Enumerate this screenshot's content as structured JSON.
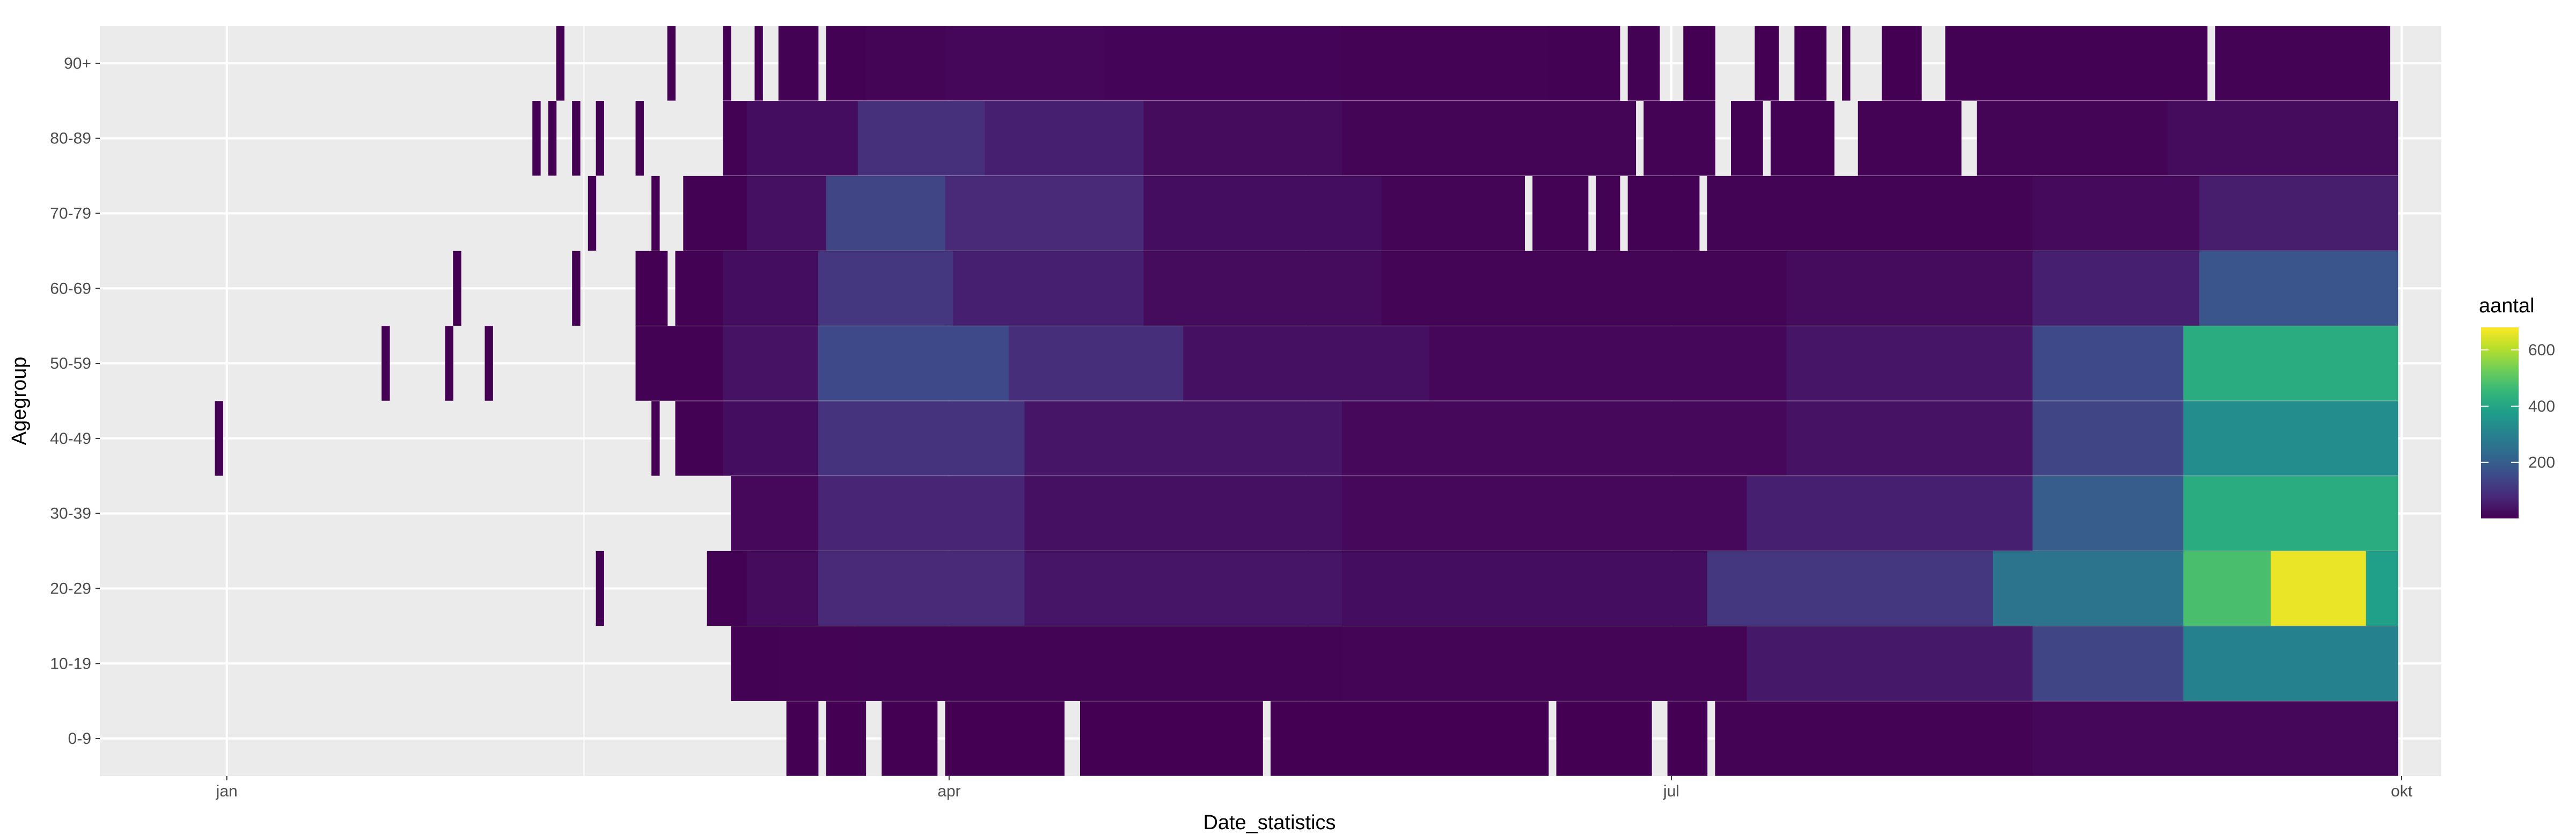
{
  "chart_data": {
    "type": "heatmap",
    "title": "",
    "xlabel": "Date_statistics",
    "ylabel": "Agegroup",
    "x_range": [
      "2019-12-16",
      "2020-10-06"
    ],
    "x_ticks": [
      {
        "date": "2020-01-01",
        "label": "jan"
      },
      {
        "date": "2020-04-01",
        "label": "apr"
      },
      {
        "date": "2020-07-01",
        "label": "jul"
      },
      {
        "date": "2020-10-01",
        "label": "okt"
      }
    ],
    "x_minor_ticks": [
      "2020-02-15",
      "2020-05-16",
      "2020-08-16"
    ],
    "y_categories": [
      "0-9",
      "10-19",
      "20-29",
      "30-39",
      "40-49",
      "50-59",
      "60-69",
      "70-79",
      "80-89",
      "90+"
    ],
    "grid": true,
    "legend": {
      "title": "aantal",
      "position": "right",
      "range": [
        1,
        680
      ],
      "ticks": [
        200,
        400,
        600
      ]
    },
    "colormap": "viridis",
    "colormap_stops": [
      "#440154",
      "#482878",
      "#3e4a89",
      "#31688e",
      "#26828e",
      "#1f9e89",
      "#35b779",
      "#6ece58",
      "#b5de2b",
      "#fde725"
    ],
    "panel_background": "#ebebeb",
    "grid_color": "#ffffff",
    "notes_series": "Values give daily case counts (aantal) per age group; each entry is [start_date, end_date, count] for a run of days.",
    "series": [
      {
        "agegroup": "90+",
        "runs": [
          [
            "2020-02-12",
            "2020-02-12",
            1
          ],
          [
            "2020-02-26",
            "2020-02-26",
            1
          ],
          [
            "2020-03-04",
            "2020-03-04",
            1
          ],
          [
            "2020-03-08",
            "2020-03-08",
            1
          ],
          [
            "2020-03-11",
            "2020-03-15",
            2
          ],
          [
            "2020-03-17",
            "2020-03-21",
            3
          ],
          [
            "2020-03-22",
            "2020-03-31",
            8
          ],
          [
            "2020-04-01",
            "2020-04-20",
            12
          ],
          [
            "2020-04-21",
            "2020-05-20",
            9
          ],
          [
            "2020-05-21",
            "2020-06-15",
            4
          ],
          [
            "2020-06-16",
            "2020-06-24",
            2
          ],
          [
            "2020-06-26",
            "2020-06-29",
            2
          ],
          [
            "2020-07-03",
            "2020-07-06",
            1
          ],
          [
            "2020-07-12",
            "2020-07-14",
            1
          ],
          [
            "2020-07-17",
            "2020-07-20",
            1
          ],
          [
            "2020-07-23",
            "2020-07-23",
            1
          ],
          [
            "2020-07-28",
            "2020-08-01",
            1
          ],
          [
            "2020-08-05",
            "2020-09-06",
            2
          ],
          [
            "2020-09-08",
            "2020-09-29",
            4
          ]
        ]
      },
      {
        "agegroup": "80-89",
        "runs": [
          [
            "2020-02-09",
            "2020-02-09",
            1
          ],
          [
            "2020-02-11",
            "2020-02-11",
            1
          ],
          [
            "2020-02-14",
            "2020-02-14",
            1
          ],
          [
            "2020-02-17",
            "2020-02-17",
            1
          ],
          [
            "2020-02-22",
            "2020-02-22",
            1
          ],
          [
            "2020-03-04",
            "2020-03-06",
            2
          ],
          [
            "2020-03-07",
            "2020-03-20",
            25
          ],
          [
            "2020-03-21",
            "2020-04-05",
            95
          ],
          [
            "2020-04-06",
            "2020-04-25",
            60
          ],
          [
            "2020-04-26",
            "2020-05-20",
            22
          ],
          [
            "2020-05-21",
            "2020-06-26",
            8
          ],
          [
            "2020-06-28",
            "2020-07-06",
            4
          ],
          [
            "2020-07-09",
            "2020-07-12",
            3
          ],
          [
            "2020-07-14",
            "2020-07-21",
            3
          ],
          [
            "2020-07-25",
            "2020-08-06",
            4
          ],
          [
            "2020-08-09",
            "2020-09-01",
            8
          ],
          [
            "2020-09-02",
            "2020-09-30",
            20
          ]
        ]
      },
      {
        "agegroup": "70-79",
        "runs": [
          [
            "2020-02-16",
            "2020-02-16",
            1
          ],
          [
            "2020-02-24",
            "2020-02-24",
            1
          ],
          [
            "2020-02-28",
            "2020-03-06",
            2
          ],
          [
            "2020-03-07",
            "2020-03-16",
            30
          ],
          [
            "2020-03-17",
            "2020-03-31",
            140
          ],
          [
            "2020-04-01",
            "2020-04-25",
            80
          ],
          [
            "2020-04-26",
            "2020-05-25",
            25
          ],
          [
            "2020-05-26",
            "2020-06-12",
            8
          ],
          [
            "2020-06-14",
            "2020-06-20",
            4
          ],
          [
            "2020-06-22",
            "2020-06-24",
            3
          ],
          [
            "2020-06-26",
            "2020-07-04",
            3
          ],
          [
            "2020-07-06",
            "2020-08-15",
            6
          ],
          [
            "2020-08-16",
            "2020-09-05",
            18
          ],
          [
            "2020-09-06",
            "2020-09-30",
            55
          ]
        ]
      },
      {
        "agegroup": "60-69",
        "runs": [
          [
            "2020-01-30",
            "2020-01-30",
            1
          ],
          [
            "2020-02-14",
            "2020-02-14",
            1
          ],
          [
            "2020-02-22",
            "2020-02-25",
            1
          ],
          [
            "2020-02-27",
            "2020-03-03",
            2
          ],
          [
            "2020-03-04",
            "2020-03-15",
            25
          ],
          [
            "2020-03-16",
            "2020-04-01",
            110
          ],
          [
            "2020-04-02",
            "2020-04-25",
            60
          ],
          [
            "2020-04-26",
            "2020-05-25",
            20
          ],
          [
            "2020-05-26",
            "2020-07-15",
            8
          ],
          [
            "2020-07-16",
            "2020-08-15",
            20
          ],
          [
            "2020-08-16",
            "2020-09-05",
            60
          ],
          [
            "2020-09-06",
            "2020-09-30",
            180
          ]
        ]
      },
      {
        "agegroup": "50-59",
        "runs": [
          [
            "2020-01-21",
            "2020-01-21",
            1
          ],
          [
            "2020-01-29",
            "2020-01-29",
            1
          ],
          [
            "2020-02-03",
            "2020-02-03",
            1
          ],
          [
            "2020-02-22",
            "2020-03-03",
            3
          ],
          [
            "2020-03-04",
            "2020-03-15",
            35
          ],
          [
            "2020-03-16",
            "2020-04-08",
            150
          ],
          [
            "2020-04-09",
            "2020-04-30",
            90
          ],
          [
            "2020-04-31",
            "2020-05-31",
            30
          ],
          [
            "2020-06-01",
            "2020-07-15",
            12
          ],
          [
            "2020-07-16",
            "2020-08-15",
            40
          ],
          [
            "2020-08-16",
            "2020-09-03",
            150
          ],
          [
            "2020-09-04",
            "2020-09-30",
            420
          ]
        ]
      },
      {
        "agegroup": "40-49",
        "runs": [
          [
            "2019-12-31",
            "2019-12-31",
            1
          ],
          [
            "2020-02-24",
            "2020-02-24",
            1
          ],
          [
            "2020-02-27",
            "2020-03-03",
            2
          ],
          [
            "2020-03-04",
            "2020-03-15",
            25
          ],
          [
            "2020-03-16",
            "2020-04-10",
            100
          ],
          [
            "2020-04-11",
            "2020-05-20",
            40
          ],
          [
            "2020-05-21",
            "2020-07-15",
            15
          ],
          [
            "2020-07-16",
            "2020-08-15",
            35
          ],
          [
            "2020-08-16",
            "2020-09-03",
            140
          ],
          [
            "2020-09-04",
            "2020-09-30",
            330
          ]
        ]
      },
      {
        "agegroup": "30-39",
        "runs": [
          [
            "2020-03-05",
            "2020-03-15",
            15
          ],
          [
            "2020-03-16",
            "2020-04-10",
            70
          ],
          [
            "2020-04-11",
            "2020-05-20",
            30
          ],
          [
            "2020-05-21",
            "2020-07-10",
            15
          ],
          [
            "2020-07-11",
            "2020-08-15",
            60
          ],
          [
            "2020-08-16",
            "2020-09-03",
            200
          ],
          [
            "2020-09-04",
            "2020-09-30",
            420
          ]
        ]
      },
      {
        "agegroup": "20-29",
        "runs": [
          [
            "2020-02-17",
            "2020-02-17",
            1
          ],
          [
            "2020-03-02",
            "2020-03-06",
            3
          ],
          [
            "2020-03-07",
            "2020-03-15",
            20
          ],
          [
            "2020-03-16",
            "2020-04-10",
            80
          ],
          [
            "2020-04-11",
            "2020-05-20",
            40
          ],
          [
            "2020-05-21",
            "2020-07-05",
            25
          ],
          [
            "2020-07-06",
            "2020-08-10",
            110
          ],
          [
            "2020-08-11",
            "2020-09-03",
            260
          ],
          [
            "2020-09-04",
            "2020-09-14",
            480
          ],
          [
            "2020-09-15",
            "2020-09-26",
            660
          ],
          [
            "2020-09-27",
            "2020-09-30",
            380
          ]
        ]
      },
      {
        "agegroup": "10-19",
        "runs": [
          [
            "2020-03-05",
            "2020-03-10",
            2
          ],
          [
            "2020-03-11",
            "2020-03-20",
            4
          ],
          [
            "2020-03-21",
            "2020-05-20",
            6
          ],
          [
            "2020-05-21",
            "2020-07-10",
            8
          ],
          [
            "2020-07-11",
            "2020-08-15",
            45
          ],
          [
            "2020-08-16",
            "2020-09-03",
            140
          ],
          [
            "2020-09-04",
            "2020-09-30",
            300
          ]
        ]
      },
      {
        "agegroup": "0-9",
        "runs": [
          [
            "2020-03-12",
            "2020-03-15",
            1
          ],
          [
            "2020-03-17",
            "2020-03-21",
            1
          ],
          [
            "2020-03-24",
            "2020-03-30",
            1
          ],
          [
            "2020-04-01",
            "2020-04-15",
            1
          ],
          [
            "2020-04-18",
            "2020-05-10",
            1
          ],
          [
            "2020-05-12",
            "2020-06-15",
            1
          ],
          [
            "2020-06-17",
            "2020-06-28",
            1
          ],
          [
            "2020-07-01",
            "2020-07-05",
            1
          ],
          [
            "2020-07-07",
            "2020-08-15",
            4
          ],
          [
            "2020-08-16",
            "2020-09-30",
            12
          ]
        ]
      }
    ]
  }
}
